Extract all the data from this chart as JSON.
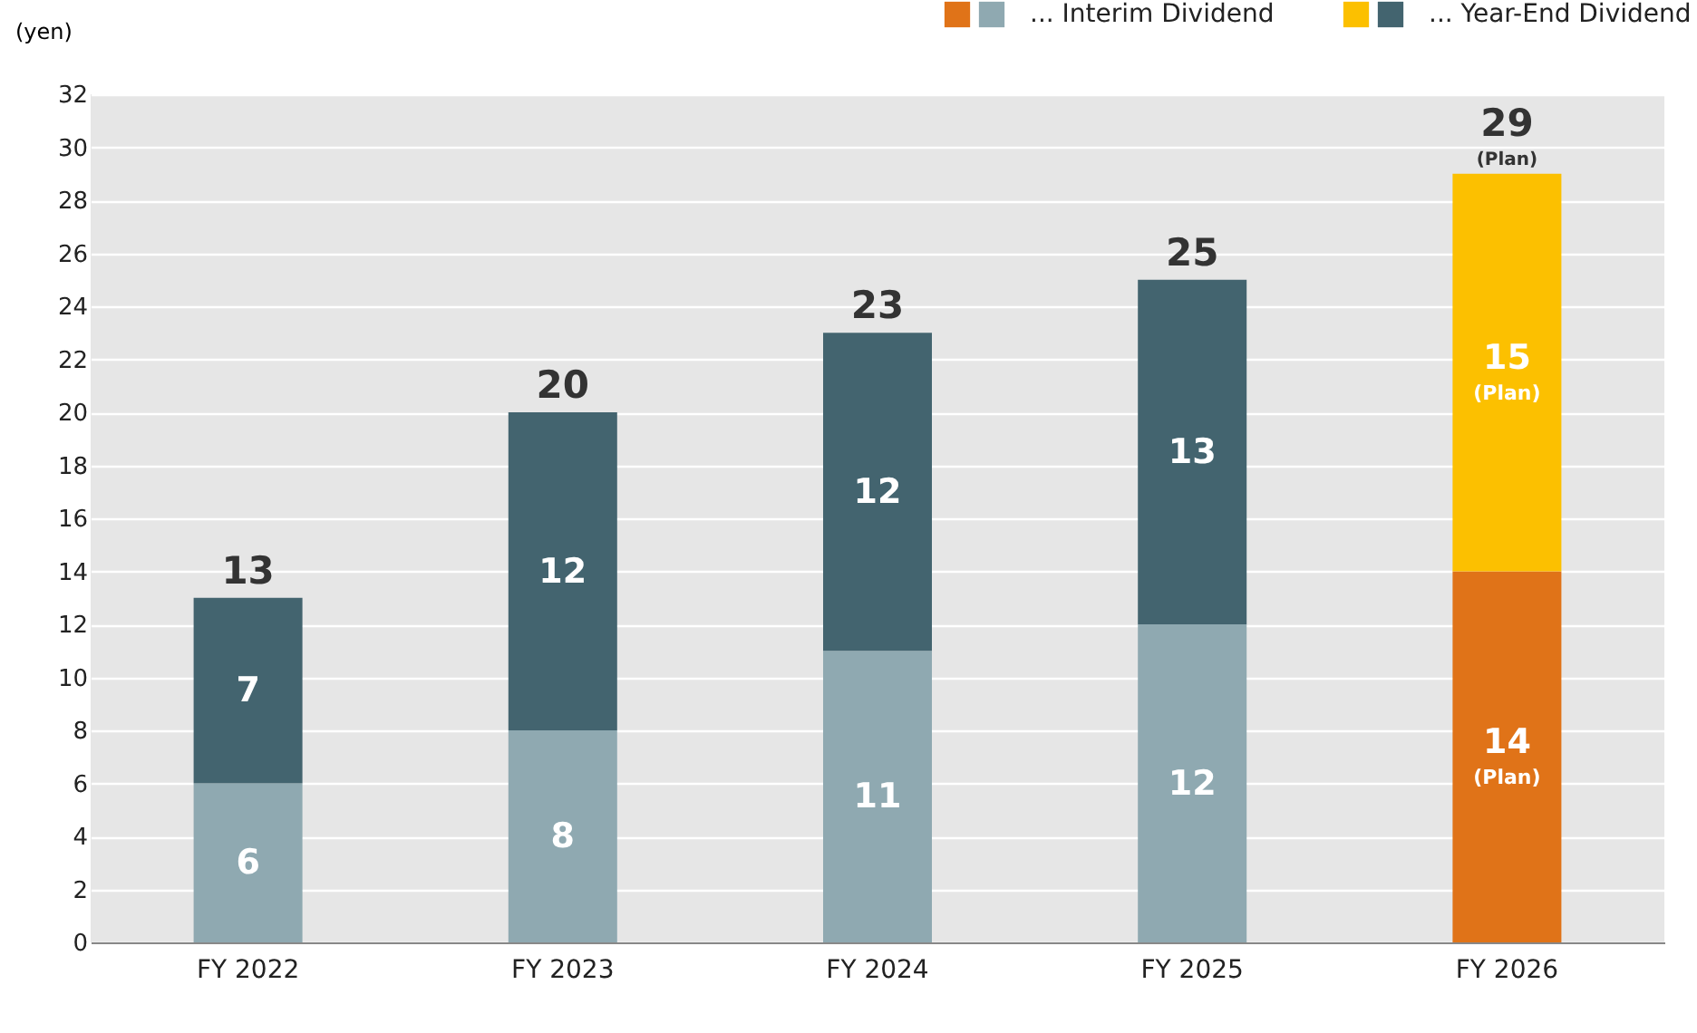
{
  "chart_data": {
    "type": "bar",
    "stacked": true,
    "ylabel": "(yen)",
    "categories": [
      "FY 2022",
      "FY 2023",
      "FY 2024",
      "FY 2025",
      "FY 2026"
    ],
    "series": [
      {
        "name": "... Interim Dividend",
        "colors": [
          "#8fa9b1",
          "#8fa9b1",
          "#8fa9b1",
          "#8fa9b1",
          "#e07318"
        ],
        "values": [
          6,
          8,
          11,
          12,
          14
        ],
        "value_labels": [
          "6",
          "8",
          "11",
          "12",
          "14\n(Plan)"
        ]
      },
      {
        "name": "... Year-End Dividend",
        "colors": [
          "#43646f",
          "#43646f",
          "#43646f",
          "#43646f",
          "#fcc000"
        ],
        "values": [
          7,
          12,
          12,
          13,
          15
        ],
        "value_labels": [
          "7",
          "12",
          "12",
          "13",
          "15\n(Plan)"
        ]
      }
    ],
    "totals": [
      "13",
      "20",
      "23",
      "25",
      "29\n(Plan)"
    ],
    "ylim": [
      0,
      32
    ],
    "yticks": [
      0,
      2,
      4,
      6,
      8,
      10,
      12,
      14,
      16,
      18,
      20,
      22,
      24,
      26,
      28,
      30,
      32
    ],
    "grid": "y",
    "legend": "top right"
  }
}
